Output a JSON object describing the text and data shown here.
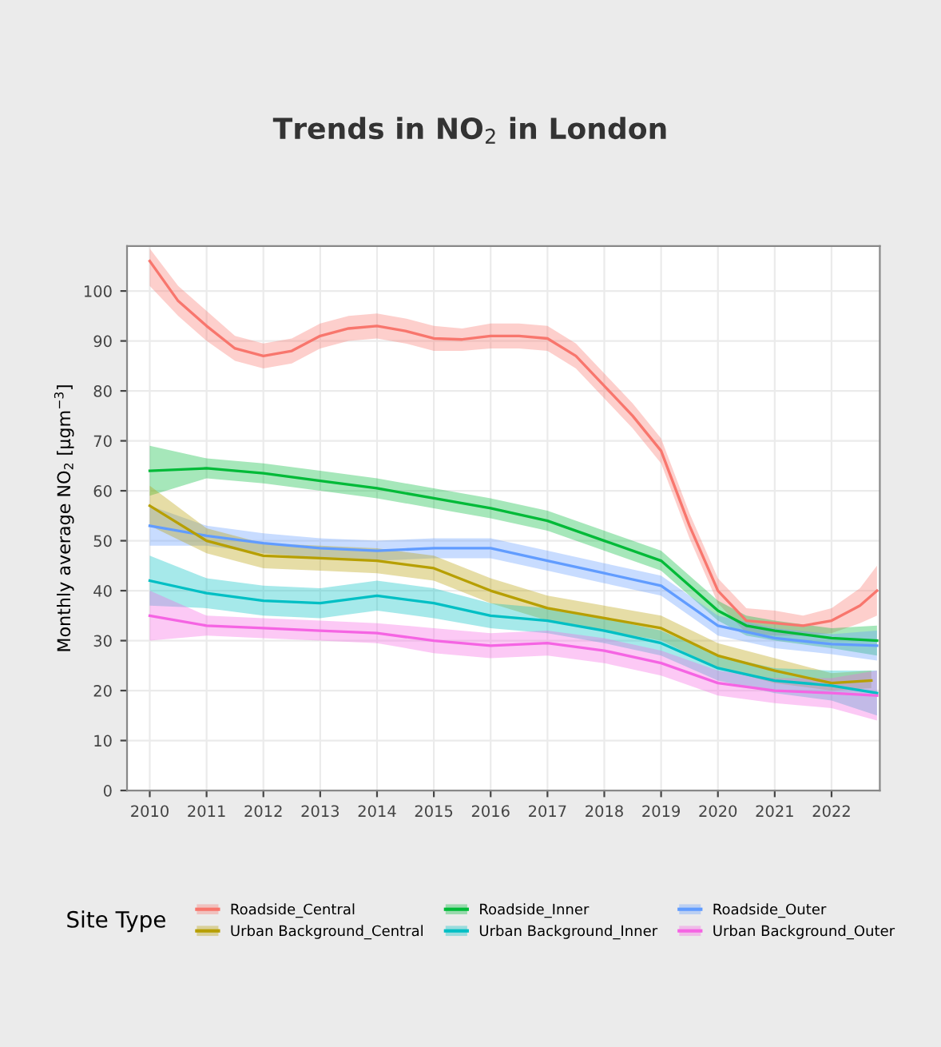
{
  "chart_data": {
    "type": "line",
    "title": "Trends in NO$_{2}$ in London",
    "xlabel": null,
    "ylabel": "Monthly average NO$_{2}$ [µgm$^{−3}$]",
    "legend_title": "Site Type",
    "xlim": [
      2009.6,
      2022.85
    ],
    "ylim": [
      0,
      109
    ],
    "xticks": [
      2010,
      2011,
      2012,
      2013,
      2014,
      2015,
      2016,
      2017,
      2018,
      2019,
      2020,
      2021,
      2022
    ],
    "yticks": [
      0,
      10,
      20,
      30,
      40,
      50,
      60,
      70,
      80,
      90,
      100
    ],
    "grid": true,
    "legend": "bottom",
    "marker": "none",
    "line_style": "solid",
    "series": [
      {
        "name": "Roadside_Central",
        "color": "#f8766d",
        "x": [
          2010,
          2010.5,
          2011,
          2011.5,
          2012,
          2012.5,
          2013,
          2013.5,
          2014,
          2014.5,
          2015,
          2015.5,
          2016,
          2016.5,
          2017,
          2017.5,
          2018,
          2018.5,
          2019,
          2019.5,
          2020,
          2020.5,
          2021,
          2021.5,
          2022,
          2022.5,
          2022.8
        ],
        "values": [
          106,
          98,
          93,
          88.5,
          87,
          88,
          91,
          92.5,
          93,
          92,
          90.5,
          90.3,
          91,
          91,
          90.5,
          87,
          81,
          75,
          68,
          53,
          40,
          34,
          33.5,
          33,
          34,
          37,
          40
        ],
        "lower": [
          101,
          95,
          90,
          86,
          84.5,
          85.5,
          88.5,
          90,
          90.5,
          89.5,
          88,
          88,
          88.5,
          88.5,
          88,
          84.5,
          78.5,
          72.5,
          65.5,
          50.5,
          37.5,
          31.5,
          31,
          31,
          31.5,
          33.5,
          35
        ],
        "upper": [
          108.5,
          101,
          96,
          91,
          89.5,
          90.5,
          93.5,
          95,
          95.5,
          94.5,
          93,
          92.5,
          93.5,
          93.5,
          93,
          89.5,
          83.5,
          77.5,
          70.5,
          55.5,
          42.5,
          36.5,
          36,
          35,
          36.5,
          40.5,
          45
        ]
      },
      {
        "name": "Roadside_Inner",
        "color": "#00ba38",
        "x": [
          2010,
          2011,
          2012,
          2013,
          2014,
          2015,
          2016,
          2017,
          2018,
          2019,
          2019.5,
          2020,
          2020.5,
          2021,
          2022,
          2022.8
        ],
        "values": [
          64,
          64.5,
          63.5,
          62,
          60.5,
          58.5,
          56.5,
          54,
          50,
          46,
          41,
          36,
          33,
          32,
          30.5,
          30
        ],
        "lower": [
          59,
          62.5,
          61.5,
          60,
          58.5,
          56.5,
          54.5,
          52,
          48,
          44,
          39,
          34,
          31,
          30,
          28.5,
          27
        ],
        "upper": [
          69,
          66.5,
          65.5,
          64,
          62.5,
          60.5,
          58.5,
          56,
          52,
          48,
          43,
          38,
          35,
          34,
          32.5,
          33
        ]
      },
      {
        "name": "Roadside_Outer",
        "color": "#619cff",
        "x": [
          2010,
          2011,
          2012,
          2013,
          2014,
          2015,
          2016,
          2017,
          2018,
          2019,
          2019.5,
          2020,
          2021,
          2022,
          2022.8
        ],
        "values": [
          53,
          51,
          49.5,
          48.5,
          48,
          48.5,
          48.5,
          46,
          43.5,
          41,
          37,
          33,
          30.5,
          29.3,
          29
        ],
        "lower": [
          49,
          49,
          47.5,
          46.5,
          46,
          46.5,
          46.5,
          44,
          41.5,
          39,
          35,
          31,
          28.5,
          27.3,
          26
        ],
        "upper": [
          57,
          53,
          51.5,
          50.5,
          50,
          50.5,
          50.5,
          48,
          45.5,
          43,
          39,
          35,
          32.5,
          31.3,
          32
        ]
      },
      {
        "name": "Urban Background_Central",
        "color": "#b79f00",
        "x": [
          2010,
          2011,
          2012,
          2013,
          2014,
          2015,
          2016,
          2017,
          2018,
          2019,
          2020,
          2021,
          2022,
          2022.7
        ],
        "values": [
          57,
          50,
          47,
          46.5,
          46,
          44.5,
          40,
          36.5,
          34.5,
          32.5,
          27,
          24,
          21.5,
          22
        ],
        "lower": [
          53,
          47.5,
          44.5,
          44,
          43.5,
          42,
          37.5,
          34,
          32,
          30,
          24.5,
          21.5,
          20,
          20.5
        ],
        "upper": [
          61,
          52.5,
          49.5,
          49,
          48.5,
          47,
          42.5,
          39,
          37,
          35,
          29.5,
          26.5,
          23.5,
          24
        ]
      },
      {
        "name": "Urban Background_Inner",
        "color": "#00bfc4",
        "x": [
          2010,
          2011,
          2012,
          2013,
          2014,
          2015,
          2016,
          2017,
          2018,
          2019,
          2020,
          2021,
          2022,
          2022.8
        ],
        "values": [
          42,
          39.5,
          38,
          37.5,
          39,
          37.5,
          35,
          34,
          32,
          29.5,
          24.5,
          22,
          21,
          19.5
        ],
        "lower": [
          37,
          36.5,
          35,
          34.5,
          36,
          34.5,
          32.5,
          31.5,
          29.5,
          27,
          22,
          19.5,
          18,
          15
        ],
        "upper": [
          47,
          42.5,
          41,
          40.5,
          42,
          40.5,
          37.5,
          36.5,
          34.5,
          32,
          27,
          24.5,
          24,
          24
        ]
      },
      {
        "name": "Urban Background_Outer",
        "color": "#f564e3",
        "x": [
          2010,
          2011,
          2012,
          2013,
          2014,
          2015,
          2016,
          2017,
          2018,
          2019,
          2020,
          2021,
          2022,
          2022.8
        ],
        "values": [
          35,
          33,
          32.5,
          32,
          31.5,
          30,
          29,
          29.5,
          28,
          25.5,
          21.5,
          20,
          19.5,
          19
        ],
        "lower": [
          30,
          31,
          30.5,
          30,
          29.5,
          27.5,
          26.5,
          27,
          25.5,
          23,
          19,
          17.5,
          16.5,
          14
        ],
        "upper": [
          40,
          35,
          34.5,
          34,
          33.5,
          32.5,
          31.5,
          32,
          30.5,
          28,
          24,
          22.5,
          22.5,
          24
        ]
      }
    ]
  }
}
